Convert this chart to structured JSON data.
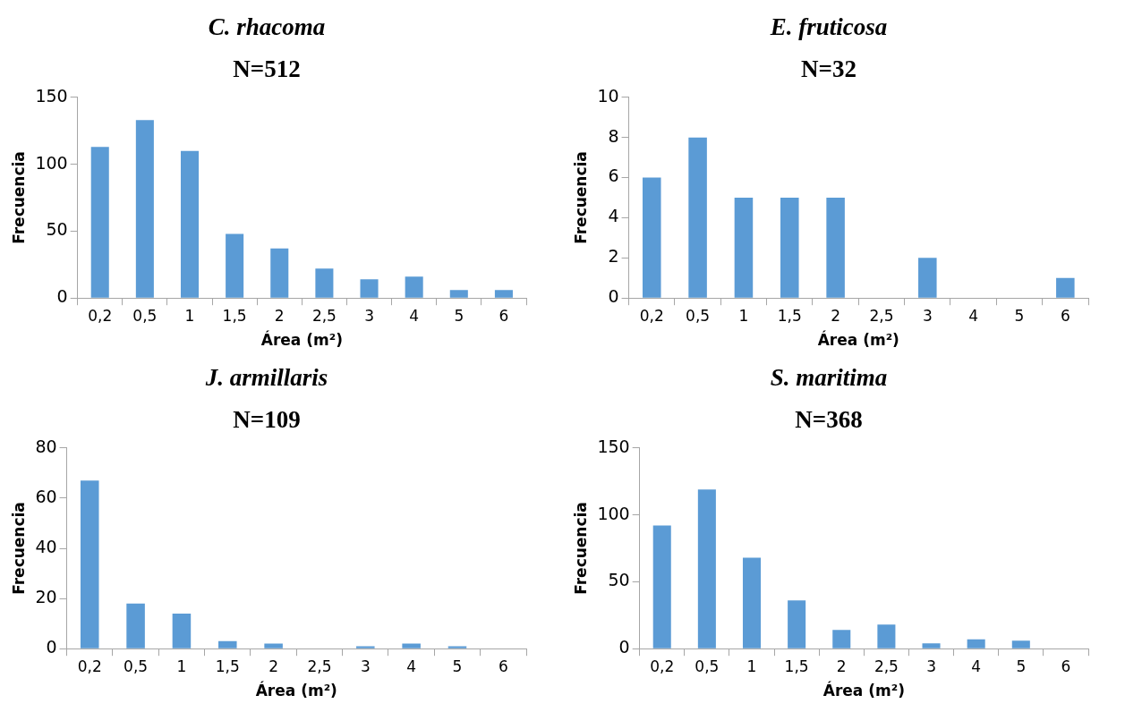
{
  "chart_data": [
    {
      "type": "bar",
      "title": "C. rhacoma",
      "subtitle": "N=512",
      "xlabel": "Área (m²)",
      "ylabel": "Frecuencia",
      "categories": [
        "0,2",
        "0,5",
        "1",
        "1,5",
        "2",
        "2,5",
        "3",
        "4",
        "5",
        "6"
      ],
      "values": [
        113,
        133,
        110,
        48,
        37,
        22,
        14,
        16,
        6,
        6
      ],
      "color": "#5b9bd5",
      "ylim": [
        0,
        150
      ],
      "yticks": [
        0,
        50,
        100,
        150
      ],
      "grid": false,
      "legend": false
    },
    {
      "type": "bar",
      "title": "E. fruticosa",
      "subtitle": "N=32",
      "xlabel": "Área (m²)",
      "ylabel": "Frecuencia",
      "categories": [
        "0,2",
        "0,5",
        "1",
        "1,5",
        "2",
        "2,5",
        "3",
        "4",
        "5",
        "6"
      ],
      "values": [
        6,
        8,
        5,
        5,
        5,
        0,
        2,
        0,
        0,
        1
      ],
      "color": "#5b9bd5",
      "ylim": [
        0,
        10
      ],
      "yticks": [
        0,
        2,
        4,
        6,
        8,
        10
      ],
      "grid": false,
      "legend": false
    },
    {
      "type": "bar",
      "title": "J. armillaris",
      "subtitle": "N=109",
      "xlabel": "Área (m²)",
      "ylabel": "Frecuencia",
      "categories": [
        "0,2",
        "0,5",
        "1",
        "1,5",
        "2",
        "2,5",
        "3",
        "4",
        "5",
        "6"
      ],
      "values": [
        67,
        18,
        14,
        3,
        2,
        0,
        1,
        2,
        1,
        0
      ],
      "color": "#5b9bd5",
      "ylim": [
        0,
        80
      ],
      "yticks": [
        0,
        20,
        40,
        60,
        80
      ],
      "grid": false,
      "legend": false
    },
    {
      "type": "bar",
      "title": "S. maritima",
      "subtitle": "N=368",
      "xlabel": "Área (m²)",
      "ylabel": "Frecuencia",
      "categories": [
        "0,2",
        "0,5",
        "1",
        "1,5",
        "2",
        "2,5",
        "3",
        "4",
        "5",
        "6"
      ],
      "values": [
        92,
        119,
        68,
        36,
        14,
        18,
        4,
        7,
        6,
        0
      ],
      "color": "#5b9bd5",
      "ylim": [
        0,
        150
      ],
      "yticks": [
        0,
        50,
        100,
        150
      ],
      "grid": false,
      "legend": false
    }
  ]
}
